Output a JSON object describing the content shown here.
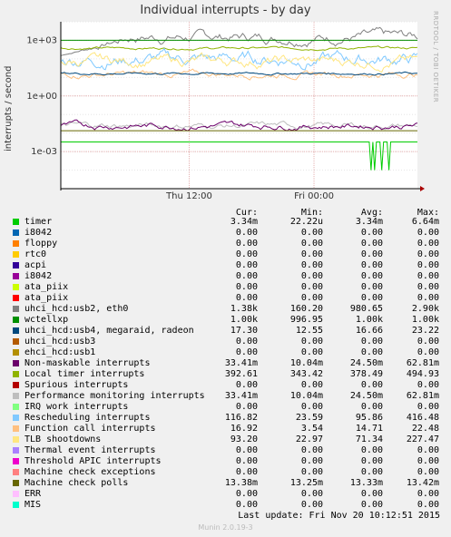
{
  "header": {
    "title": "Individual interrupts - by day",
    "side_label": "RRDTOOL / TOBI OETIKER"
  },
  "legend_headers": {
    "cur": "Cur:",
    "min": "Min:",
    "avg": "Avg:",
    "max": "Max:"
  },
  "legend": [
    {
      "name": "timer",
      "color": "#00cc00",
      "cur": "3.34m",
      "min": "22.22u",
      "avg": "3.34m",
      "max": "6.64m"
    },
    {
      "name": "i8042",
      "color": "#0066b3",
      "cur": "0.00",
      "min": "0.00",
      "avg": "0.00",
      "max": "0.00"
    },
    {
      "name": "floppy",
      "color": "#ff8000",
      "cur": "0.00",
      "min": "0.00",
      "avg": "0.00",
      "max": "0.00"
    },
    {
      "name": "rtc0",
      "color": "#ffcc00",
      "cur": "0.00",
      "min": "0.00",
      "avg": "0.00",
      "max": "0.00"
    },
    {
      "name": "acpi",
      "color": "#330099",
      "cur": "0.00",
      "min": "0.00",
      "avg": "0.00",
      "max": "0.00"
    },
    {
      "name": "i8042",
      "color": "#990099",
      "cur": "0.00",
      "min": "0.00",
      "avg": "0.00",
      "max": "0.00"
    },
    {
      "name": "ata_piix",
      "color": "#ccff00",
      "cur": "0.00",
      "min": "0.00",
      "avg": "0.00",
      "max": "0.00"
    },
    {
      "name": "ata_piix",
      "color": "#ff0000",
      "cur": "0.00",
      "min": "0.00",
      "avg": "0.00",
      "max": "0.00"
    },
    {
      "name": "uhci_hcd:usb2, eth0",
      "color": "#808080",
      "cur": "1.38k",
      "min": "160.20",
      "avg": "980.65",
      "max": "2.90k"
    },
    {
      "name": "wctellxp",
      "color": "#008f00",
      "cur": "1.00k",
      "min": "996.95",
      "avg": "1.00k",
      "max": "1.00k"
    },
    {
      "name": "uhci_hcd:usb4, megaraid, radeon",
      "color": "#00487d",
      "cur": "17.30",
      "min": "12.55",
      "avg": "16.66",
      "max": "23.22"
    },
    {
      "name": "uhci_hcd:usb3",
      "color": "#b35a00",
      "cur": "0.00",
      "min": "0.00",
      "avg": "0.00",
      "max": "0.00"
    },
    {
      "name": "ehci_hcd:usb1",
      "color": "#b38f00",
      "cur": "0.00",
      "min": "0.00",
      "avg": "0.00",
      "max": "0.00"
    },
    {
      "name": "Non-maskable interrupts",
      "color": "#6b006b",
      "cur": "33.41m",
      "min": "10.04m",
      "avg": "24.50m",
      "max": "62.81m"
    },
    {
      "name": "Local timer interrupts",
      "color": "#8fb300",
      "cur": "392.61",
      "min": "343.42",
      "avg": "378.49",
      "max": "494.93"
    },
    {
      "name": "Spurious interrupts",
      "color": "#b30000",
      "cur": "0.00",
      "min": "0.00",
      "avg": "0.00",
      "max": "0.00"
    },
    {
      "name": "Performance monitoring interrupts",
      "color": "#bebebe",
      "cur": "33.41m",
      "min": "10.04m",
      "avg": "24.50m",
      "max": "62.81m"
    },
    {
      "name": "IRQ work interrupts",
      "color": "#80ff80",
      "cur": "0.00",
      "min": "0.00",
      "avg": "0.00",
      "max": "0.00"
    },
    {
      "name": "Rescheduling interrupts",
      "color": "#80c9ff",
      "cur": "116.82",
      "min": "23.59",
      "avg": "95.86",
      "max": "416.48"
    },
    {
      "name": "Function call interrupts",
      "color": "#ffc080",
      "cur": "16.92",
      "min": "3.54",
      "avg": "14.71",
      "max": "22.48"
    },
    {
      "name": "TLB shootdowns",
      "color": "#ffe680",
      "cur": "93.20",
      "min": "22.97",
      "avg": "71.34",
      "max": "227.47"
    },
    {
      "name": "Thermal event interrupts",
      "color": "#aa80ff",
      "cur": "0.00",
      "min": "0.00",
      "avg": "0.00",
      "max": "0.00"
    },
    {
      "name": "Threshold APIC interrupts",
      "color": "#ee00cc",
      "cur": "0.00",
      "min": "0.00",
      "avg": "0.00",
      "max": "0.00"
    },
    {
      "name": "Machine check exceptions",
      "color": "#ff8080",
      "cur": "0.00",
      "min": "0.00",
      "avg": "0.00",
      "max": "0.00"
    },
    {
      "name": "Machine check polls",
      "color": "#666600",
      "cur": "13.38m",
      "min": "13.25m",
      "avg": "13.33m",
      "max": "13.42m"
    },
    {
      "name": "ERR",
      "color": "#ffbfff",
      "cur": "0.00",
      "min": "0.00",
      "avg": "0.00",
      "max": "0.00"
    },
    {
      "name": "MIS",
      "color": "#00ffcc",
      "cur": "0.00",
      "min": "0.00",
      "avg": "0.00",
      "max": "0.00"
    }
  ],
  "last_update": "Last update:  Fri Nov 20 10:12:51 2015",
  "footer": "Munin 2.0.19-3",
  "chart_data": {
    "type": "line",
    "title": "Individual interrupts - by day",
    "ylabel": "interrupts / second",
    "yscale": "log",
    "ylim": [
      1e-05,
      10000
    ],
    "y_ticks": [
      {
        "label": "1e+03",
        "value": 1000
      },
      {
        "label": "1e+00",
        "value": 1
      },
      {
        "label": "1e-03",
        "value": 0.001
      }
    ],
    "x_ticks": [
      {
        "label": "Thu 12:00",
        "value": 0.36
      },
      {
        "label": "Fri 00:00",
        "value": 0.71
      }
    ],
    "series": [
      {
        "name": "uhci_hcd:usb2, eth0",
        "color": "#808080",
        "level": 1500,
        "jitter": 0.35,
        "ramp_from": 150
      },
      {
        "name": "wctellxp",
        "color": "#008f00",
        "level": 1000,
        "jitter": 0.0
      },
      {
        "name": "Local timer interrupts",
        "color": "#8fb300",
        "level": 380,
        "jitter": 0.08
      },
      {
        "name": "Rescheduling interrupts",
        "color": "#80c9ff",
        "level": 100,
        "jitter": 0.45
      },
      {
        "name": "TLB shootdowns",
        "color": "#ffe680",
        "level": 75,
        "jitter": 0.35
      },
      {
        "name": "Function call interrupts",
        "color": "#ffc080",
        "level": 15,
        "jitter": 0.2
      },
      {
        "name": "uhci_hcd:usb4, megaraid, radeon",
        "color": "#00487d",
        "level": 16.5,
        "jitter": 0.08
      },
      {
        "name": "Performance monitoring interrupts",
        "color": "#bebebe",
        "level": 0.025,
        "jitter": 0.2
      },
      {
        "name": "Non-maskable interrupts",
        "color": "#6b006b",
        "level": 0.025,
        "jitter": 0.2
      },
      {
        "name": "Machine check polls",
        "color": "#666600",
        "level": 0.0133,
        "jitter": 0.0
      },
      {
        "name": "timer",
        "color": "#00cc00",
        "level": 0.0033,
        "jitter": 0.0,
        "dips": [
          0.87,
          0.88,
          0.9,
          0.92
        ]
      }
    ]
  }
}
